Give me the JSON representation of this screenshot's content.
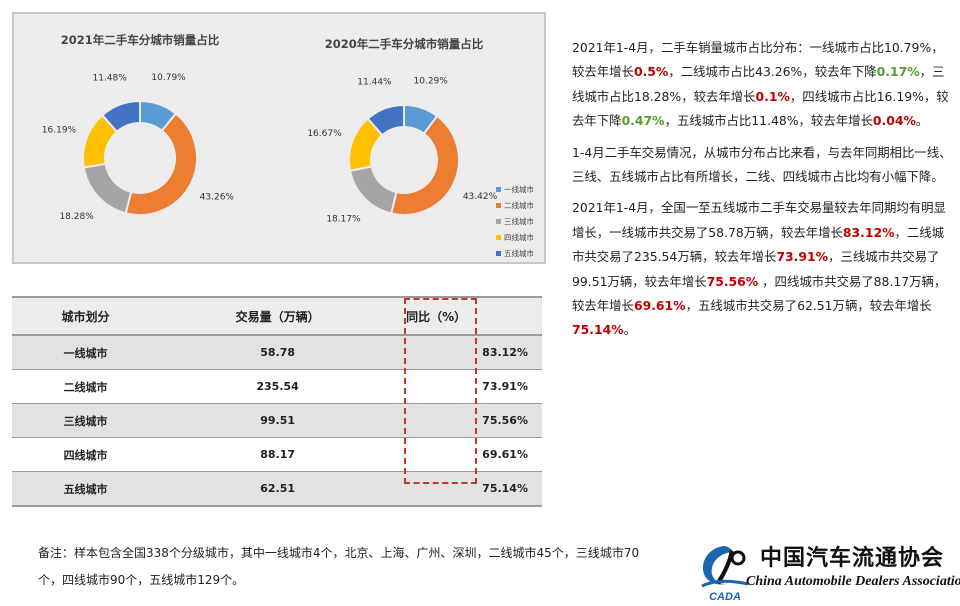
{
  "chart_data": [
    {
      "type": "pie",
      "title": "2021年二手车分城市销量占比",
      "categories": [
        "一线城市",
        "二线城市",
        "三线城市",
        "四线城市",
        "五线城市"
      ],
      "values": [
        10.79,
        43.26,
        18.28,
        16.19,
        11.48
      ],
      "labels": [
        "10.79%",
        "43.26%",
        "18.28%",
        "16.19%",
        "11.48%"
      ]
    },
    {
      "type": "pie",
      "title": "2020年二手车分城市销量占比",
      "categories": [
        "一线城市",
        "二线城市",
        "三线城市",
        "四线城市",
        "五线城市"
      ],
      "values": [
        10.29,
        43.42,
        18.17,
        16.67,
        11.44
      ],
      "labels": [
        "10.29%",
        "43.42%",
        "18.17%",
        "16.67%",
        "11.44%"
      ]
    }
  ],
  "colors": [
    "#5b9bd5",
    "#ed7d31",
    "#a5a5a5",
    "#ffc000",
    "#4472c4"
  ],
  "legend": [
    "一线城市",
    "二线城市",
    "三线城市",
    "四线城市",
    "五线城市"
  ],
  "table": {
    "headers": [
      "城市划分",
      "交易量（万辆）",
      "同比（%）"
    ],
    "rows": [
      {
        "city": "一线城市",
        "volume": "58.78",
        "yoy": "83.12%"
      },
      {
        "city": "二线城市",
        "volume": "235.54",
        "yoy": "73.91%"
      },
      {
        "city": "三线城市",
        "volume": "99.51",
        "yoy": "75.56%"
      },
      {
        "city": "四线城市",
        "volume": "88.17",
        "yoy": "69.61%"
      },
      {
        "city": "五线城市",
        "volume": "62.51",
        "yoy": "75.14%"
      }
    ]
  },
  "text": {
    "p1": [
      {
        "t": "2021年1-4月，二手车销量城市占比分布：一线城市占比10.79%，较去年增长"
      },
      {
        "t": "0.5%",
        "c": "red"
      },
      {
        "t": "，二线城市占比43.26%，较去年下降"
      },
      {
        "t": "0.17%",
        "c": "green"
      },
      {
        "t": "，三线城市占比18.28%，较去年增长"
      },
      {
        "t": "0.1%",
        "c": "red"
      },
      {
        "t": "，四线城市占比16.19%，较去年下降"
      },
      {
        "t": "0.47%",
        "c": "green"
      },
      {
        "t": "，五线城市占比11.48%，较去年增长"
      },
      {
        "t": "0.04%",
        "c": "red"
      },
      {
        "t": "。"
      }
    ],
    "p2": [
      {
        "t": "1-4月二手车交易情况，从城市分布占比来看，与去年同期相比一线、三线、五线城市占比有所增长，二线、四线城市占比均有小幅下降。"
      }
    ],
    "p3": [
      {
        "t": "2021年1-4月，全国一至五线城市二手车交易量较去年同期均有明显增长，一线城市共交易了58.78万辆，较去年增长"
      },
      {
        "t": "83.12%",
        "c": "red"
      },
      {
        "t": "，二线城市共交易了235.54万辆，较去年增长"
      },
      {
        "t": "73.91%",
        "c": "red"
      },
      {
        "t": "，三线城市共交易了99.51万辆，较去年增长"
      },
      {
        "t": "75.56%",
        "c": "red"
      },
      {
        "t": " ，四线城市共交易了88.17万辆，较去年增长"
      },
      {
        "t": "69.61%",
        "c": "red"
      },
      {
        "t": "，五线城市共交易了62.51万辆，较去年增长"
      },
      {
        "t": "75.14%",
        "c": "red"
      },
      {
        "t": "。"
      }
    ]
  },
  "note": "备注：样本包含全国338个分级城市，其中一线城市4个，北京、上海、广州、深圳，二线城市45个，三线城市70个，四线城市90个，五线城市129个。",
  "logo": {
    "cn": "中国汽车流通协会",
    "en": "China Automobile Dealers Association",
    "mark": "CADA"
  }
}
